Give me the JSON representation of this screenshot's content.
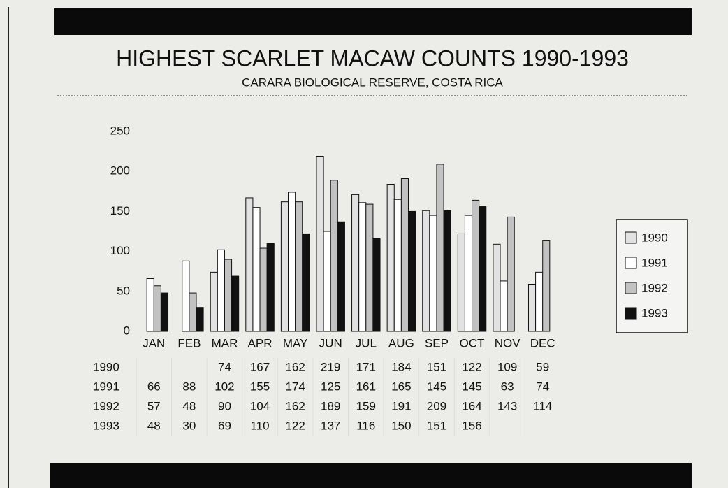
{
  "chart_data": {
    "type": "bar",
    "title": "HIGHEST SCARLET MACAW COUNTS 1990-1993",
    "subtitle": "CARARA BIOLOGICAL RESERVE, COSTA RICA",
    "categories": [
      "JAN",
      "FEB",
      "MAR",
      "APR",
      "MAY",
      "JUN",
      "JUL",
      "AUG",
      "SEP",
      "OCT",
      "NOV",
      "DEC"
    ],
    "series": [
      {
        "name": "1990",
        "color": "#e2e2e2",
        "values": [
          null,
          null,
          74,
          167,
          162,
          219,
          171,
          184,
          151,
          122,
          109,
          59
        ]
      },
      {
        "name": "1991",
        "color": "#ffffff",
        "values": [
          66,
          88,
          102,
          155,
          174,
          125,
          161,
          165,
          145,
          145,
          63,
          74
        ]
      },
      {
        "name": "1992",
        "color": "#c2c2c2",
        "values": [
          57,
          48,
          90,
          104,
          162,
          189,
          159,
          191,
          209,
          164,
          143,
          114
        ]
      },
      {
        "name": "1993",
        "color": "#111111",
        "values": [
          48,
          30,
          69,
          110,
          122,
          137,
          116,
          150,
          151,
          156,
          null,
          null
        ]
      }
    ],
    "ylim": [
      0,
      250
    ],
    "yticks": [
      0,
      50,
      100,
      150,
      200,
      250
    ],
    "grid": false,
    "legend": "right"
  }
}
